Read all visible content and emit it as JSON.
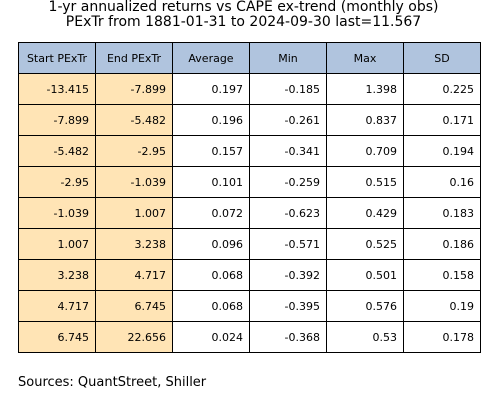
{
  "header": {
    "title_lines": [
      "1-yr annualized returns vs CAPE ex-trend (monthly obs)",
      "PExTr from 1881-01-31 to 2024-09-30 last=11.567"
    ]
  },
  "table": {
    "columns": [
      "Start PExTr",
      "End PExTr",
      "Average",
      "Min",
      "Max",
      "SD"
    ],
    "rows": [
      [
        "-13.415",
        "-7.899",
        "0.197",
        "-0.185",
        "1.398",
        "0.225"
      ],
      [
        "-7.899",
        "-5.482",
        "0.196",
        "-0.261",
        "0.837",
        "0.171"
      ],
      [
        "-5.482",
        "-2.95",
        "0.157",
        "-0.341",
        "0.709",
        "0.194"
      ],
      [
        "-2.95",
        "-1.039",
        "0.101",
        "-0.259",
        "0.515",
        "0.16"
      ],
      [
        "-1.039",
        "1.007",
        "0.072",
        "-0.623",
        "0.429",
        "0.183"
      ],
      [
        "1.007",
        "3.238",
        "0.096",
        "-0.571",
        "0.525",
        "0.186"
      ],
      [
        "3.238",
        "4.717",
        "0.068",
        "-0.392",
        "0.501",
        "0.158"
      ],
      [
        "4.717",
        "6.745",
        "0.068",
        "-0.395",
        "0.576",
        "0.19"
      ],
      [
        "6.745",
        "22.656",
        "0.024",
        "-0.368",
        "0.53",
        "0.178"
      ]
    ]
  },
  "footer": {
    "source": "Sources: QuantStreet, Shiller"
  }
}
